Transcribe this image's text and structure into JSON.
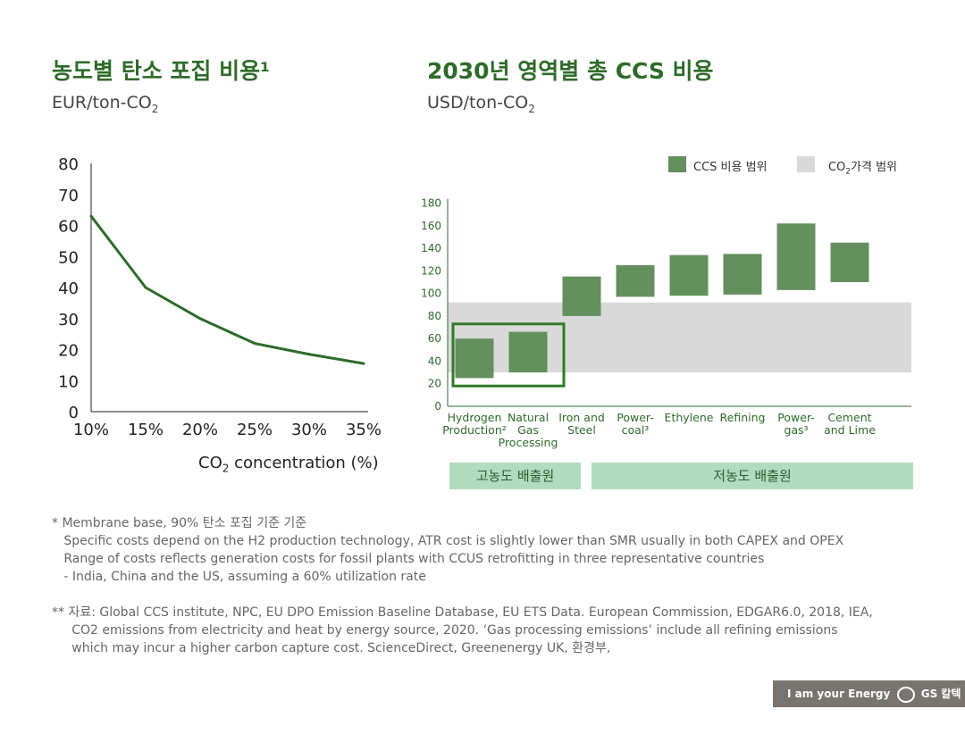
{
  "left": {
    "title": "농도별 탄소 포집 비용¹",
    "unit": "EUR/ton-CO",
    "unit_sub": "2",
    "xlabel": "CO",
    "xlabel_sub": "2",
    "xlabel_rest": " concentration (%)"
  },
  "right": {
    "title": "2030년 영역별 총 CCS 비용",
    "unit": "USD/ton-CO",
    "unit_sub": "2",
    "legend": {
      "ccs": "CCS 비용 범위",
      "co2": "CO",
      "co2_sub": "2",
      "co2_rest": "가격 범위"
    },
    "groups": {
      "high": "고농도 배출원",
      "low": "저농도 배출원"
    }
  },
  "chart_data": [
    {
      "type": "line",
      "title": "농도별 탄소 포집 비용¹",
      "ylabel": "EUR/ton-CO2",
      "xlabel": "CO2 concentration (%)",
      "x": [
        "10%",
        "15%",
        "20%",
        "25%",
        "30%",
        "35%"
      ],
      "values": [
        63,
        40,
        30,
        22,
        18.5,
        15.5
      ],
      "ylim": [
        0,
        80
      ],
      "yticks": [
        0,
        10,
        20,
        30,
        40,
        50,
        60,
        70,
        80
      ],
      "color": "#2e6b2a",
      "grid": false
    },
    {
      "type": "bar",
      "subtype": "floating-range",
      "title": "2030년 영역별 총 CCS 비용",
      "ylabel": "USD/ton-CO2",
      "categories": [
        "Hydrogen\nProduction²",
        "Natural\nGas\nProcessing",
        "Iron and\nSteel",
        "Power-\ncoal³",
        "Ethylene",
        "Refining",
        "Power-\ngas³",
        "Cement\nand Lime"
      ],
      "low": [
        25,
        30,
        80,
        97,
        98,
        99,
        103,
        110
      ],
      "high": [
        60,
        66,
        115,
        125,
        134,
        135,
        162,
        145
      ],
      "co2_price_range": [
        30,
        92
      ],
      "highlighted": [
        "Hydrogen\nProduction²",
        "Natural\nGas\nProcessing"
      ],
      "ylim": [
        0,
        180
      ],
      "yticks": [
        0,
        20,
        40,
        60,
        80,
        100,
        120,
        140,
        160,
        180
      ],
      "colors": {
        "bar": "#63905d",
        "band": "#d9d9d9",
        "highlight": "#2e7a2a"
      },
      "legend": "top-right",
      "grid": false
    }
  ],
  "footnotes": [
    "* Membrane base, 90% 탄소 포집 기준 기준\n   Specific costs depend on the H2 production technology, ATR cost is slightly lower than SMR usually in both CAPEX and OPEX\n   Range of costs reflects generation costs for fossil plants with CCUS retrofitting in three representative countries\n   - India, China and the US, assuming a 60% utilization rate",
    "** 자료: Global CCS institute, NPC, EU DPO Emission Baseline Database, EU ETS Data. European Commission, EDGAR6.0, 2018, IEA,\n     CO2 emissions from electricity and heat by energy source, 2020. ‘Gas processing emissions’ include all refining emissions\n     which may incur a higher carbon capture cost. ScienceDirect, Greenenergy UK, 환경부,"
  ],
  "footer": {
    "slogan": "I am your Energy",
    "logo": "GS 칼텍스"
  }
}
